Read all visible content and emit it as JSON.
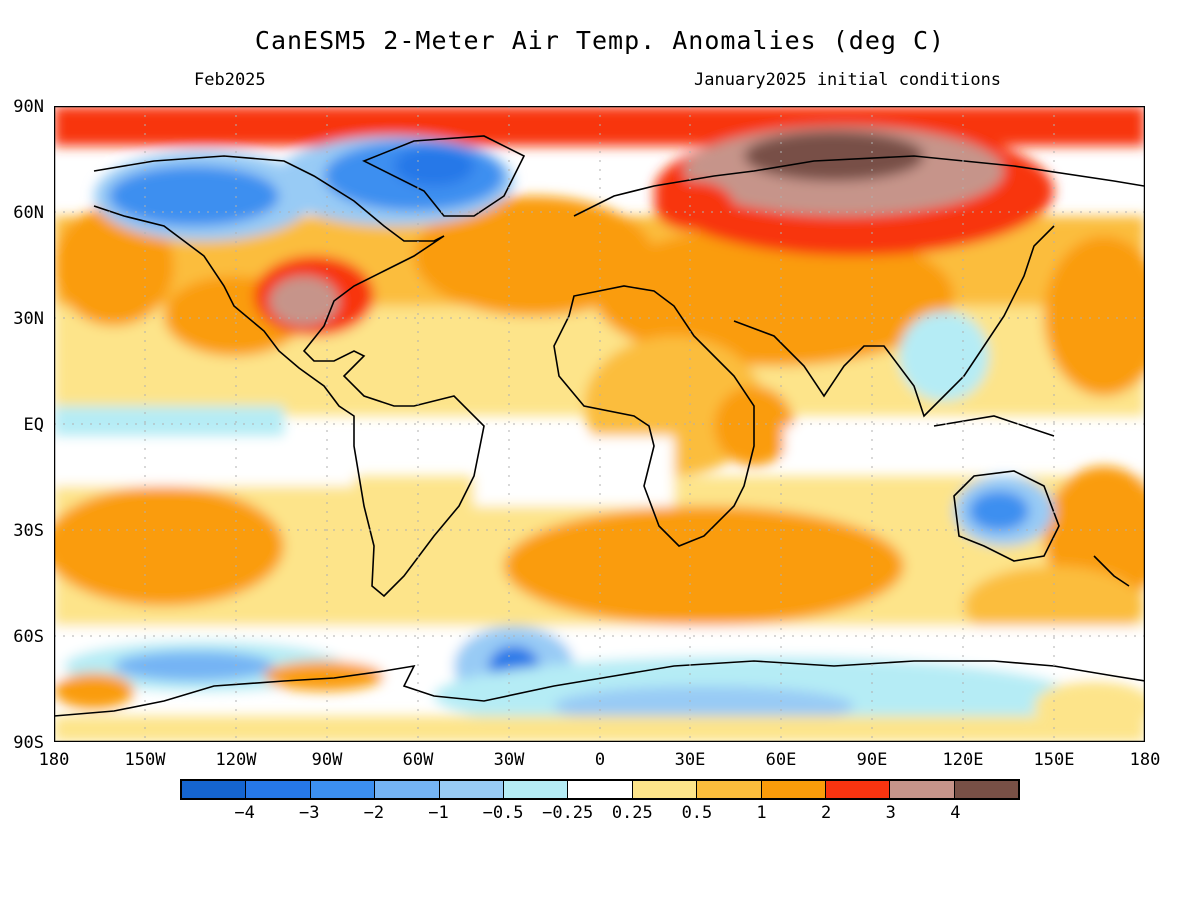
{
  "header": {
    "title": "CanESM5 2-Meter Air Temp. Anomalies (deg C)",
    "valid_month": "Feb2025",
    "initial_conditions": "January2025 initial conditions"
  },
  "axes": {
    "lat_labels": [
      "90N",
      "60N",
      "30N",
      "EQ",
      "30S",
      "60S",
      "90S"
    ],
    "lon_labels": [
      "180",
      "150W",
      "120W",
      "90W",
      "60W",
      "30W",
      "0",
      "30E",
      "60E",
      "90E",
      "120E",
      "150E",
      "180"
    ]
  },
  "colorbar": {
    "colors": [
      "#1565d0",
      "#2678e8",
      "#3c8ff0",
      "#75b4f4",
      "#98cbf5",
      "#b5ecf5",
      "#ffffff",
      "#fde48a",
      "#fbbd3c",
      "#fa9c0a",
      "#f83410",
      "#c6948a",
      "#785046"
    ],
    "labels": [
      "-4",
      "-3",
      "-2",
      "-1",
      "-0.5",
      "-0.25",
      "0.25",
      "0.5",
      "1",
      "2",
      "3",
      "4"
    ]
  }
}
